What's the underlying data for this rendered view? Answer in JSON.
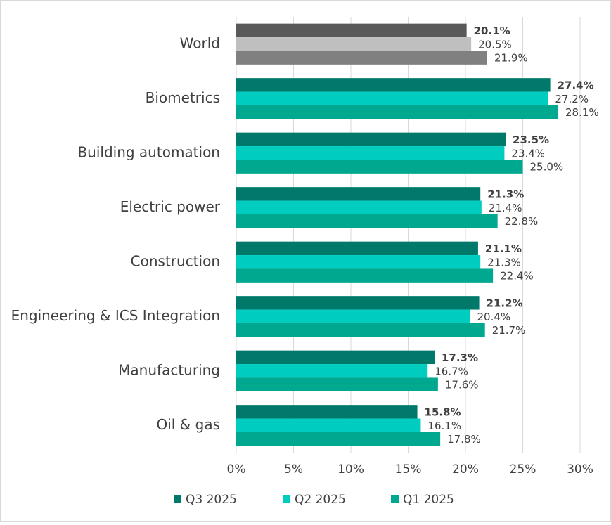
{
  "chart_data": {
    "type": "bar",
    "orientation": "horizontal",
    "categories": [
      "World",
      "Biometrics",
      "Building automation",
      "Electric power",
      "Construction",
      "Engineering & ICS Integration",
      "Manufacturing",
      "Oil & gas"
    ],
    "series": [
      {
        "name": "Q3 2025",
        "color": "#00796b",
        "colors": [
          "#595959",
          "#00796b",
          "#00796b",
          "#00796b",
          "#00796b",
          "#00796b",
          "#00796b",
          "#00796b"
        ],
        "bold_labels": true,
        "values": [
          20.1,
          27.4,
          23.5,
          21.3,
          21.1,
          21.2,
          17.3,
          15.8
        ],
        "value_labels": [
          "20.1%",
          "27.4%",
          "23.5%",
          "21.3%",
          "21.1%",
          "21.2%",
          "17.3%",
          "15.8%"
        ]
      },
      {
        "name": "Q2 2025",
        "color": "#00ccbf",
        "colors": [
          "#bfbfbf",
          "#00ccbf",
          "#00ccbf",
          "#00ccbf",
          "#00ccbf",
          "#00ccbf",
          "#00ccbf",
          "#00ccbf"
        ],
        "bold_labels": false,
        "values": [
          20.5,
          27.2,
          23.4,
          21.4,
          21.3,
          20.4,
          16.7,
          16.1
        ],
        "value_labels": [
          "20.5%",
          "27.2%",
          "23.4%",
          "21.4%",
          "21.3%",
          "20.4%",
          "16.7%",
          "16.1%"
        ]
      },
      {
        "name": "Q1 2025",
        "color": "#00a88f",
        "colors": [
          "#808080",
          "#00a88f",
          "#00a88f",
          "#00a88f",
          "#00a88f",
          "#00a88f",
          "#00a88f",
          "#00a88f"
        ],
        "bold_labels": false,
        "values": [
          21.9,
          28.1,
          25.0,
          22.8,
          22.4,
          21.7,
          17.6,
          17.8
        ],
        "value_labels": [
          "21.9%",
          "28.1%",
          "25.0%",
          "22.8%",
          "22.4%",
          "21.7%",
          "17.6%",
          "17.8%"
        ]
      }
    ],
    "xlim": [
      0,
      30
    ],
    "xticks": [
      {
        "value": 0,
        "label": "0%"
      },
      {
        "value": 5,
        "label": "5%"
      },
      {
        "value": 10,
        "label": "10%"
      },
      {
        "value": 15,
        "label": "15%"
      },
      {
        "value": 20,
        "label": "20%"
      },
      {
        "value": 25,
        "label": "25%"
      },
      {
        "value": 30,
        "label": "30%"
      }
    ],
    "grid": true,
    "legend": "bottom"
  }
}
